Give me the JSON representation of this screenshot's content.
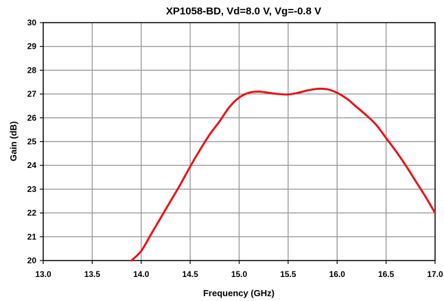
{
  "chart_data": {
    "type": "line",
    "title": "XP1058-BD, Vd=8.0 V, Vg=-0.8 V",
    "xlabel": "Frequency (GHz)",
    "ylabel": "Gain (dB)",
    "xlim": [
      13.0,
      17.0
    ],
    "ylim": [
      20,
      30
    ],
    "x_ticks": [
      "13.0",
      "13.5",
      "14.0",
      "14.5",
      "15.0",
      "15.5",
      "16.0",
      "16.5",
      "17.0"
    ],
    "y_ticks": [
      "20",
      "21",
      "22",
      "23",
      "24",
      "25",
      "26",
      "27",
      "28",
      "29",
      "30"
    ],
    "grid": true,
    "series": [
      {
        "color": "#e8141b",
        "x": [
          13.9,
          14.0,
          14.1,
          14.2,
          14.3,
          14.4,
          14.5,
          14.6,
          14.7,
          14.8,
          14.9,
          15.0,
          15.1,
          15.2,
          15.3,
          15.4,
          15.5,
          15.6,
          15.7,
          15.8,
          15.9,
          16.0,
          16.1,
          16.2,
          16.3,
          16.4,
          16.5,
          16.6,
          16.7,
          16.8,
          16.9,
          17.0
        ],
        "y": [
          19.85,
          20.4,
          21.1,
          21.8,
          22.5,
          23.2,
          23.95,
          24.65,
          25.3,
          25.85,
          26.45,
          26.85,
          27.05,
          27.1,
          27.05,
          27.0,
          26.98,
          27.05,
          27.15,
          27.22,
          27.2,
          27.05,
          26.8,
          26.45,
          26.1,
          25.7,
          25.15,
          24.6,
          24.0,
          23.35,
          22.7,
          22.0
        ]
      }
    ]
  }
}
